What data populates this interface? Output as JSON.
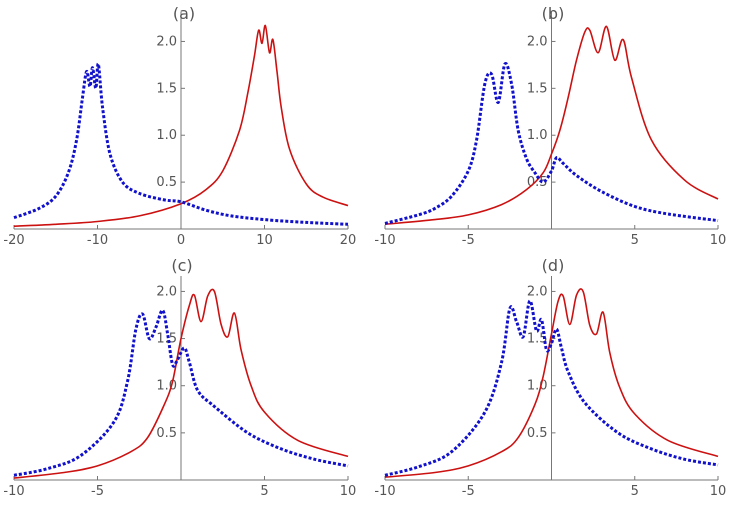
{
  "chart_data": [
    {
      "type": "line",
      "label": "(a)",
      "xlim": [
        -20,
        20
      ],
      "ylim": [
        0,
        2.25
      ],
      "xticks": [
        -20,
        -10,
        0,
        10,
        20
      ],
      "xtick_labels": [
        "-20",
        "-10",
        "0",
        "10",
        "20"
      ],
      "yticks": [
        0.5,
        1.0,
        1.5,
        2.0
      ],
      "ytick_labels": [
        "0.5",
        "1.0",
        "1.5",
        "2.0"
      ],
      "series": [
        {
          "style": "solid",
          "color": "#cc1111",
          "x": [
            -20,
            -15,
            -10,
            -5,
            0,
            3,
            5,
            7,
            8,
            8.8,
            9.3,
            9.7,
            10.1,
            10.6,
            11.0,
            11.5,
            12.0,
            13,
            15,
            17,
            20
          ],
          "y": [
            0.03,
            0.05,
            0.08,
            0.14,
            0.27,
            0.42,
            0.62,
            1.05,
            1.45,
            1.85,
            2.12,
            1.98,
            2.17,
            1.88,
            2.02,
            1.68,
            1.3,
            0.85,
            0.48,
            0.34,
            0.25
          ]
        },
        {
          "style": "dotted",
          "color": "#1111cc",
          "x": [
            -20,
            -17,
            -15,
            -13.5,
            -12.5,
            -11.8,
            -11.3,
            -10.9,
            -10.6,
            -10.2,
            -9.9,
            -9.4,
            -8.5,
            -7,
            -5,
            -2,
            0,
            3,
            6,
            10,
            15,
            20
          ],
          "y": [
            0.12,
            0.22,
            0.35,
            0.6,
            0.95,
            1.4,
            1.68,
            1.52,
            1.72,
            1.5,
            1.76,
            1.3,
            0.8,
            0.5,
            0.38,
            0.31,
            0.29,
            0.2,
            0.14,
            0.1,
            0.07,
            0.05
          ]
        }
      ]
    },
    {
      "type": "line",
      "label": "(b)",
      "xlim": [
        -10,
        10
      ],
      "ylim": [
        0,
        2.25
      ],
      "xticks": [
        -10,
        -5,
        0,
        5,
        10
      ],
      "xtick_labels": [
        "-10",
        "-5",
        "",
        "5",
        "10"
      ],
      "yticks": [
        0.5,
        1.0,
        1.5,
        2.0
      ],
      "ytick_labels": [
        "0.5",
        "1.0",
        "1.5",
        "2.0"
      ],
      "series": [
        {
          "style": "solid",
          "color": "#cc1111",
          "x": [
            -10,
            -7,
            -5,
            -3,
            -1.5,
            -0.5,
            0,
            0.5,
            1.0,
            1.5,
            2.0,
            2.3,
            2.8,
            3.3,
            3.8,
            4.3,
            4.8,
            6,
            8,
            10
          ],
          "y": [
            0.05,
            0.1,
            0.15,
            0.26,
            0.42,
            0.6,
            0.8,
            1.05,
            1.4,
            1.8,
            2.1,
            2.12,
            1.88,
            2.16,
            1.8,
            2.02,
            1.62,
            0.95,
            0.52,
            0.32
          ]
        },
        {
          "style": "dotted",
          "color": "#1111cc",
          "x": [
            -10,
            -8,
            -7,
            -6,
            -5,
            -4.5,
            -4.0,
            -3.6,
            -3.2,
            -2.8,
            -2.4,
            -2.0,
            -1.5,
            -1.0,
            -0.5,
            0,
            0.3,
            0.7,
            1.5,
            3,
            5,
            7,
            10
          ],
          "y": [
            0.06,
            0.15,
            0.22,
            0.35,
            0.62,
            0.95,
            1.55,
            1.65,
            1.35,
            1.76,
            1.55,
            1.05,
            0.75,
            0.6,
            0.5,
            0.62,
            0.76,
            0.7,
            0.57,
            0.4,
            0.24,
            0.16,
            0.09
          ]
        }
      ]
    },
    {
      "type": "line",
      "label": "(c)",
      "xlim": [
        -10,
        10
      ],
      "ylim": [
        0,
        2.1
      ],
      "xticks": [
        -10,
        -5,
        0,
        5,
        10
      ],
      "xtick_labels": [
        "-10",
        "-5",
        "",
        "5",
        "10"
      ],
      "yticks": [
        0.5,
        1.0,
        1.5,
        2.0
      ],
      "ytick_labels": [
        "0.5",
        "1.0",
        "1.5",
        "2.0"
      ],
      "series": [
        {
          "style": "solid",
          "color": "#cc1111",
          "x": [
            -10,
            -7,
            -5,
            -3,
            -2,
            -1,
            -0.5,
            0,
            0.5,
            0.8,
            1.2,
            1.6,
            2.0,
            2.4,
            2.8,
            3.2,
            3.6,
            4.2,
            5,
            7,
            10
          ],
          "y": [
            0.02,
            0.08,
            0.15,
            0.3,
            0.45,
            0.8,
            1.05,
            1.5,
            1.85,
            1.96,
            1.68,
            1.95,
            2.0,
            1.65,
            1.52,
            1.77,
            1.38,
            1.0,
            0.72,
            0.42,
            0.25
          ]
        },
        {
          "style": "dotted",
          "color": "#1111cc",
          "x": [
            -10,
            -8,
            -6,
            -4,
            -3.2,
            -2.7,
            -2.3,
            -1.9,
            -1.5,
            -1.1,
            -0.8,
            -0.5,
            -0.2,
            0.2,
            0.5,
            1,
            2,
            4,
            6,
            8,
            10
          ],
          "y": [
            0.05,
            0.12,
            0.26,
            0.62,
            1.05,
            1.6,
            1.76,
            1.5,
            1.62,
            1.8,
            1.55,
            1.22,
            1.28,
            1.4,
            1.25,
            0.95,
            0.78,
            0.5,
            0.33,
            0.22,
            0.15
          ]
        }
      ]
    },
    {
      "type": "line",
      "label": "(d)",
      "xlim": [
        -10,
        10
      ],
      "ylim": [
        0,
        2.1
      ],
      "xticks": [
        -10,
        -5,
        0,
        5,
        10
      ],
      "xtick_labels": [
        "-10",
        "-5",
        "",
        "5",
        "10"
      ],
      "yticks": [
        0.5,
        1.0,
        1.5,
        2.0
      ],
      "ytick_labels": [
        "0.5",
        "1.0",
        "1.5",
        "2.0"
      ],
      "series": [
        {
          "style": "solid",
          "color": "#cc1111",
          "x": [
            -10,
            -7,
            -5,
            -3,
            -2,
            -1,
            -0.5,
            0,
            0.4,
            0.7,
            1.1,
            1.5,
            1.9,
            2.3,
            2.7,
            3.1,
            3.5,
            4.1,
            5,
            7,
            10
          ],
          "y": [
            0.03,
            0.08,
            0.15,
            0.3,
            0.45,
            0.8,
            1.1,
            1.55,
            1.9,
            1.95,
            1.65,
            1.96,
            2.0,
            1.64,
            1.55,
            1.78,
            1.35,
            0.98,
            0.7,
            0.42,
            0.25
          ]
        },
        {
          "style": "dotted",
          "color": "#1111cc",
          "x": [
            -10,
            -8,
            -6,
            -4,
            -3.0,
            -2.5,
            -2.1,
            -1.7,
            -1.3,
            -0.9,
            -0.6,
            -0.3,
            0,
            0.3,
            0.6,
            1,
            2,
            4,
            6,
            8,
            10
          ],
          "y": [
            0.05,
            0.14,
            0.3,
            0.72,
            1.25,
            1.82,
            1.68,
            1.52,
            1.9,
            1.58,
            1.7,
            1.38,
            1.45,
            1.6,
            1.4,
            1.15,
            0.82,
            0.5,
            0.33,
            0.22,
            0.16
          ]
        }
      ]
    }
  ]
}
